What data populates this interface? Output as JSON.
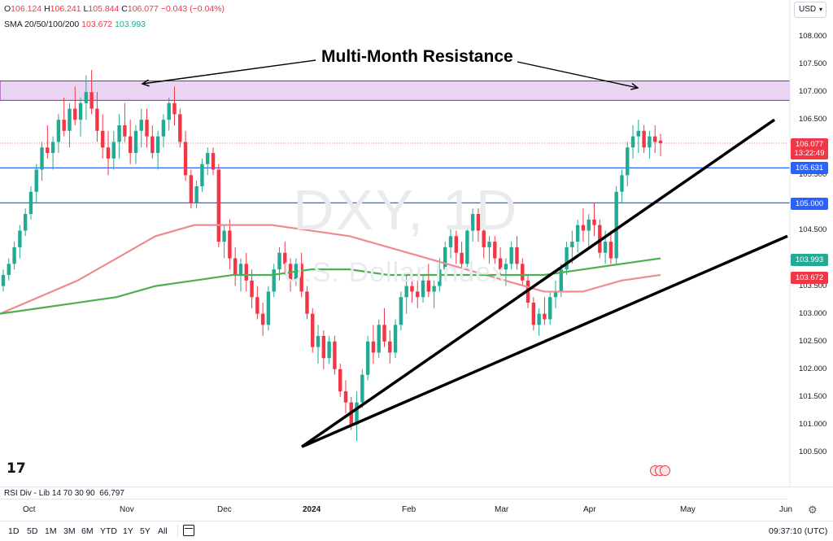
{
  "header": {
    "ohlc": {
      "o_label": "O",
      "o": "106.124",
      "h_label": "H",
      "h": "106.241",
      "l_label": "L",
      "l": "105.844",
      "c_label": "C",
      "c": "106.077",
      "change": "−0.043 (−0.04%)"
    },
    "sma": {
      "label": "SMA 20/50/100/200",
      "v1": "103.672",
      "v2": "103.993"
    },
    "currency": "USD"
  },
  "watermark": {
    "symbol": "DXY, 1D",
    "description": "U.S. Dollar Index"
  },
  "annotation": {
    "text": "Multi-Month Resistance"
  },
  "price_axis": {
    "labels": [
      "108.000",
      "107.500",
      "107.000",
      "106.500",
      "106.000",
      "105.500",
      "105.000",
      "104.500",
      "104.000",
      "103.500",
      "103.000",
      "102.500",
      "102.000",
      "101.500",
      "101.000",
      "100.500"
    ],
    "last_price": "106.077",
    "countdown": "13:22:49",
    "level_1": "105.631",
    "level_2": "105.000",
    "sma_a": "103.993",
    "sma_b": "103.672"
  },
  "chart_data": {
    "type": "candlestick",
    "symbol": "DXY",
    "interval": "1D",
    "ylim": [
      100.3,
      108.3
    ],
    "candles": [
      [
        103.5,
        103.8,
        103.4,
        103.7
      ],
      [
        103.7,
        104.0,
        103.6,
        103.9
      ],
      [
        103.9,
        104.3,
        103.8,
        104.2
      ],
      [
        104.2,
        104.6,
        104.0,
        104.5
      ],
      [
        104.5,
        104.9,
        104.4,
        104.8
      ],
      [
        104.8,
        105.3,
        104.7,
        105.2
      ],
      [
        105.2,
        105.7,
        105.0,
        105.6
      ],
      [
        105.6,
        106.1,
        105.4,
        106.0
      ],
      [
        106.0,
        106.4,
        105.8,
        105.9
      ],
      [
        105.9,
        106.2,
        105.6,
        106.1
      ],
      [
        106.1,
        106.6,
        105.9,
        106.5
      ],
      [
        106.5,
        106.9,
        106.2,
        106.3
      ],
      [
        106.3,
        106.8,
        106.0,
        106.7
      ],
      [
        106.7,
        107.1,
        106.4,
        106.5
      ],
      [
        106.5,
        106.9,
        106.2,
        106.8
      ],
      [
        106.8,
        107.3,
        106.5,
        107.0
      ],
      [
        107.0,
        107.4,
        106.6,
        106.7
      ],
      [
        106.7,
        107.0,
        106.1,
        106.3
      ],
      [
        106.3,
        106.6,
        105.8,
        106.0
      ],
      [
        106.0,
        106.3,
        105.5,
        105.8
      ],
      [
        105.8,
        106.3,
        105.6,
        106.1
      ],
      [
        106.1,
        106.6,
        105.8,
        106.4
      ],
      [
        106.4,
        106.8,
        106.1,
        106.2
      ],
      [
        106.2,
        106.5,
        105.7,
        105.9
      ],
      [
        105.9,
        106.4,
        105.7,
        106.3
      ],
      [
        106.3,
        106.7,
        106.0,
        106.5
      ],
      [
        106.5,
        106.7,
        106.0,
        106.2
      ],
      [
        106.2,
        106.4,
        105.8,
        105.9
      ],
      [
        105.9,
        106.3,
        105.6,
        106.2
      ],
      [
        106.2,
        106.6,
        106.0,
        106.5
      ],
      [
        106.5,
        106.9,
        106.3,
        106.8
      ],
      [
        106.8,
        107.1,
        106.4,
        106.6
      ],
      [
        106.6,
        106.7,
        106.0,
        106.1
      ],
      [
        106.1,
        106.3,
        105.4,
        105.5
      ],
      [
        105.5,
        105.6,
        104.9,
        105.0
      ],
      [
        105.0,
        105.4,
        104.9,
        105.3
      ],
      [
        105.3,
        105.8,
        105.2,
        105.7
      ],
      [
        105.7,
        106.0,
        105.5,
        105.9
      ],
      [
        105.9,
        106.0,
        105.5,
        105.6
      ],
      [
        105.6,
        105.7,
        104.2,
        104.3
      ],
      [
        104.3,
        104.6,
        104.0,
        104.5
      ],
      [
        104.5,
        104.7,
        103.8,
        104.0
      ],
      [
        104.0,
        104.2,
        103.5,
        103.7
      ],
      [
        103.7,
        104.0,
        103.4,
        103.9
      ],
      [
        103.9,
        104.1,
        103.4,
        103.6
      ],
      [
        103.6,
        103.8,
        103.1,
        103.3
      ],
      [
        103.3,
        103.5,
        102.9,
        103.0
      ],
      [
        103.0,
        103.2,
        102.6,
        102.8
      ],
      [
        102.8,
        103.5,
        102.7,
        103.4
      ],
      [
        103.4,
        103.9,
        103.3,
        103.8
      ],
      [
        103.8,
        104.2,
        103.6,
        104.1
      ],
      [
        104.1,
        104.3,
        103.7,
        103.9
      ],
      [
        103.9,
        104.0,
        103.4,
        103.6
      ],
      [
        103.6,
        104.0,
        103.5,
        103.9
      ],
      [
        103.9,
        104.1,
        103.3,
        103.4
      ],
      [
        103.4,
        103.5,
        102.9,
        103.0
      ],
      [
        103.0,
        103.1,
        102.3,
        102.4
      ],
      [
        102.4,
        102.8,
        102.1,
        102.6
      ],
      [
        102.6,
        102.7,
        102.0,
        102.2
      ],
      [
        102.2,
        102.6,
        102.1,
        102.5
      ],
      [
        102.5,
        102.6,
        101.9,
        102.0
      ],
      [
        102.0,
        102.1,
        101.5,
        101.6
      ],
      [
        101.6,
        101.8,
        101.2,
        101.4
      ],
      [
        101.4,
        101.5,
        100.9,
        101.0
      ],
      [
        101.0,
        101.6,
        100.7,
        101.4
      ],
      [
        101.4,
        102.0,
        101.3,
        101.9
      ],
      [
        101.9,
        102.6,
        101.8,
        102.5
      ],
      [
        102.5,
        102.8,
        102.1,
        102.3
      ],
      [
        102.3,
        102.9,
        102.2,
        102.8
      ],
      [
        102.8,
        103.1,
        102.4,
        102.5
      ],
      [
        102.5,
        102.7,
        102.1,
        102.3
      ],
      [
        102.3,
        102.9,
        102.2,
        102.8
      ],
      [
        102.8,
        103.4,
        102.7,
        103.3
      ],
      [
        103.3,
        103.7,
        103.0,
        103.5
      ],
      [
        103.5,
        103.8,
        103.2,
        103.4
      ],
      [
        103.4,
        103.6,
        103.1,
        103.3
      ],
      [
        103.3,
        103.7,
        103.2,
        103.6
      ],
      [
        103.6,
        103.9,
        103.3,
        103.4
      ],
      [
        103.4,
        103.6,
        103.1,
        103.5
      ],
      [
        103.5,
        104.0,
        103.4,
        103.8
      ],
      [
        103.8,
        104.3,
        103.6,
        104.2
      ],
      [
        104.2,
        104.6,
        104.0,
        104.4
      ],
      [
        104.4,
        104.5,
        103.9,
        104.1
      ],
      [
        104.1,
        104.3,
        103.7,
        103.9
      ],
      [
        103.9,
        104.6,
        103.8,
        104.5
      ],
      [
        104.5,
        104.9,
        104.3,
        104.8
      ],
      [
        104.8,
        104.9,
        104.3,
        104.5
      ],
      [
        104.5,
        104.6,
        104.0,
        104.2
      ],
      [
        104.2,
        104.4,
        103.9,
        104.3
      ],
      [
        104.3,
        104.4,
        103.9,
        104.0
      ],
      [
        104.0,
        104.2,
        103.6,
        103.8
      ],
      [
        103.8,
        104.0,
        103.5,
        103.9
      ],
      [
        103.9,
        104.3,
        103.8,
        104.2
      ],
      [
        104.2,
        104.4,
        103.8,
        103.9
      ],
      [
        103.9,
        104.0,
        103.5,
        103.6
      ],
      [
        103.6,
        103.7,
        103.1,
        103.2
      ],
      [
        103.2,
        103.3,
        102.7,
        102.8
      ],
      [
        102.8,
        103.1,
        102.6,
        103.0
      ],
      [
        103.0,
        103.3,
        102.8,
        102.9
      ],
      [
        102.9,
        103.4,
        102.8,
        103.3
      ],
      [
        103.3,
        103.6,
        103.1,
        103.4
      ],
      [
        103.4,
        103.9,
        103.3,
        103.8
      ],
      [
        103.8,
        104.3,
        103.7,
        104.2
      ],
      [
        104.2,
        104.5,
        103.9,
        104.3
      ],
      [
        104.3,
        104.7,
        104.1,
        104.6
      ],
      [
        104.6,
        104.9,
        104.3,
        104.5
      ],
      [
        104.5,
        104.8,
        104.2,
        104.7
      ],
      [
        104.7,
        105.0,
        104.4,
        104.6
      ],
      [
        104.6,
        104.7,
        104.0,
        104.1
      ],
      [
        104.1,
        104.5,
        103.9,
        104.3
      ],
      [
        104.3,
        104.5,
        103.9,
        104.0
      ],
      [
        104.0,
        105.3,
        103.9,
        105.2
      ],
      [
        105.2,
        105.6,
        105.0,
        105.5
      ],
      [
        105.5,
        106.1,
        105.3,
        106.0
      ],
      [
        106.0,
        106.4,
        105.8,
        106.2
      ],
      [
        106.2,
        106.5,
        105.9,
        106.3
      ],
      [
        106.3,
        106.4,
        105.9,
        106.0
      ],
      [
        106.0,
        106.3,
        105.8,
        106.2
      ],
      [
        106.2,
        106.4,
        105.9,
        106.1
      ],
      [
        106.124,
        106.241,
        105.844,
        106.077
      ]
    ],
    "sma_green": [
      103.0,
      103.1,
      103.2,
      103.3,
      103.5,
      103.6,
      103.7,
      103.7,
      103.8,
      103.8,
      103.7,
      103.7,
      103.7,
      103.7,
      103.7,
      103.8,
      103.9,
      104.0
    ],
    "sma_pink": [
      103.0,
      103.3,
      103.6,
      104.0,
      104.4,
      104.6,
      104.6,
      104.6,
      104.5,
      104.4,
      104.2,
      104.0,
      103.8,
      103.6,
      103.4,
      103.4,
      103.6,
      103.7
    ],
    "horizontal_levels": [
      105.631,
      105.0
    ],
    "resistance_zone": [
      106.85,
      107.2
    ],
    "trendlines": [
      [
        100.6,
        106.6
      ],
      [
        100.6,
        104.4
      ]
    ],
    "x_ticks": [
      "Oct",
      "Nov",
      "Dec",
      "2024",
      "Feb",
      "Mar",
      "Apr",
      "May",
      "Jun"
    ]
  },
  "indicators": {
    "rsi": "RSI Div - Lib 14 70 30 90",
    "rsi_value": "66.797"
  },
  "toolbar": {
    "ranges": [
      "1D",
      "5D",
      "1M",
      "3M",
      "6M",
      "YTD",
      "1Y",
      "5Y",
      "All"
    ],
    "clock": "09:37:10 (UTC)"
  },
  "colors": {
    "up": "#22ab94",
    "down": "#f23645",
    "level": "#2962ff",
    "zone": "#e9d5f2",
    "zone_border": "#8e24aa",
    "sma_green": "#4caf50",
    "sma_pink": "#ef8a8f"
  }
}
